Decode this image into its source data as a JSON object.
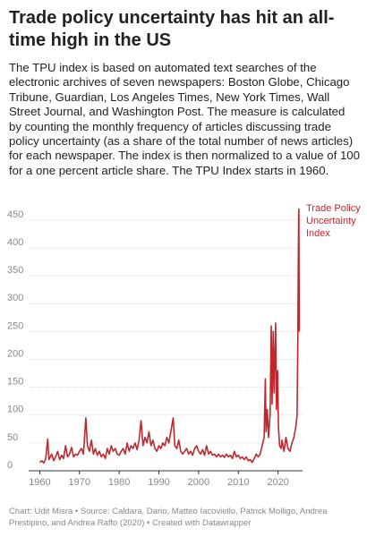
{
  "chart_data": {
    "type": "line",
    "title": "Trade policy uncertainty has hit an all-time high in the US",
    "subtitle": "The TPU index is based on automated text searches of the electronic archives of seven newspapers: Boston Globe, Chicago Tribune, Guardian, Los Angeles Times, New York Times, Wall Street Journal, and Washington Post. The measure is calculated by counting the monthly frequency of articles discussing trade policy uncertainty (as a share of the total number of news articles) for each newspaper. The index is then normalized to a value of 100 for a one percent article share. The TPU Index starts in 1960.",
    "footer": "Chart: Udit Misra • Source: Caldara, Dario, Matteo Iacoviello, Patrick Molligo, Andrea Prestipino, and Andrea Raffo (2020) • Created with Datawrapper",
    "x": [
      1960,
      1960.5,
      1961,
      1961.5,
      1962,
      1962.3,
      1963,
      1963.5,
      1964,
      1964.5,
      1965,
      1965.5,
      1966,
      1966.5,
      1967,
      1967.5,
      1968,
      1968.5,
      1969,
      1969.5,
      1970,
      1970.5,
      1971,
      1971.6,
      1972,
      1972.5,
      1973,
      1973.5,
      1974,
      1974.5,
      1975,
      1975.5,
      1976,
      1976.5,
      1977,
      1977.5,
      1978,
      1978.5,
      1979,
      1979.5,
      1980,
      1980.5,
      1981,
      1981.5,
      1982,
      1982.5,
      1983,
      1983.5,
      1984,
      1984.5,
      1985,
      1985.5,
      1986,
      1986.5,
      1987,
      1987.5,
      1988,
      1988.5,
      1989,
      1989.5,
      1990,
      1990.5,
      1991,
      1991.5,
      1992,
      1992.5,
      1993,
      1993.6,
      1994,
      1994.5,
      1995,
      1995.5,
      1996,
      1996.5,
      1997,
      1997.5,
      1998,
      1998.5,
      1999,
      1999.5,
      2000,
      2000.5,
      2001,
      2001.5,
      2002,
      2002.5,
      2003,
      2003.5,
      2004,
      2004.5,
      2005,
      2005.5,
      2006,
      2006.5,
      2007,
      2007.5,
      2008,
      2008.5,
      2009,
      2009.5,
      2010,
      2010.5,
      2011,
      2011.5,
      2012,
      2012.5,
      2013,
      2013.5,
      2014,
      2014.5,
      2015,
      2015.5,
      2016,
      2016.5,
      2016.8,
      2017,
      2017.3,
      2017.6,
      2018,
      2018.3,
      2018.5,
      2018.8,
      2019,
      2019.4,
      2019.6,
      2019.9,
      2020.1,
      2020.4,
      2020.8,
      2021,
      2021.5,
      2022,
      2022.5,
      2023,
      2023.5,
      2024,
      2024.5,
      2024.8,
      2025,
      2025.1,
      2025.2,
      2025.25,
      2025.35
    ],
    "series": [
      {
        "name": "Trade Policy Uncertainty Index",
        "color": "#c0272d",
        "values": [
          15,
          18,
          14,
          22,
          57,
          20,
          30,
          18,
          25,
          35,
          20,
          28,
          22,
          45,
          25,
          30,
          42,
          25,
          30,
          28,
          35,
          40,
          30,
          95,
          45,
          35,
          55,
          30,
          40,
          28,
          35,
          25,
          30,
          22,
          40,
          30,
          45,
          35,
          40,
          30,
          28,
          35,
          40,
          30,
          50,
          35,
          45,
          40,
          50,
          38,
          55,
          90,
          45,
          60,
          50,
          70,
          45,
          55,
          40,
          35,
          45,
          40,
          50,
          45,
          60,
          50,
          70,
          95,
          45,
          40,
          55,
          35,
          30,
          35,
          40,
          30,
          35,
          28,
          40,
          45,
          35,
          30,
          38,
          28,
          45,
          30,
          35,
          28,
          30,
          25,
          30,
          25,
          28,
          24,
          30,
          25,
          28,
          22,
          35,
          25,
          28,
          22,
          25,
          20,
          25,
          18,
          20,
          15,
          22,
          30,
          25,
          30,
          45,
          60,
          165,
          70,
          110,
          60,
          100,
          260,
          120,
          250,
          140,
          265,
          110,
          180,
          80,
          45,
          40,
          55,
          35,
          60,
          40,
          35,
          50,
          60,
          80,
          100,
          240,
          370,
          460,
          470,
          250
        ]
      }
    ],
    "xlim": [
      1959,
      2025.5
    ],
    "xticks": [
      1960,
      1970,
      1980,
      1990,
      2000,
      2010,
      2020
    ],
    "ylim": [
      0,
      450
    ],
    "yticks": [
      0,
      50,
      100,
      150,
      200,
      250,
      300,
      350,
      400,
      450
    ],
    "grid": true
  }
}
